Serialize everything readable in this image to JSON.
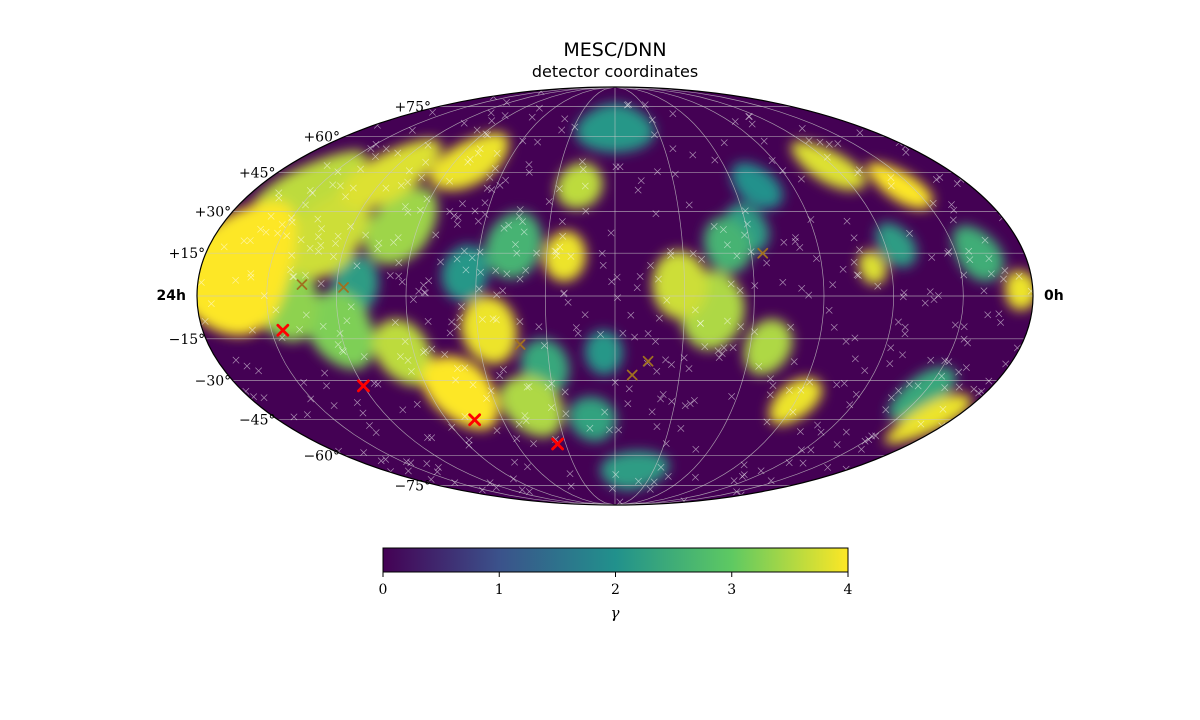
{
  "chart_data": {
    "type": "heatmap",
    "projection": "mollweide",
    "title": "MESC/DNN",
    "subtitle": "detector coordinates",
    "ra_labels": {
      "left": "24h",
      "right": "0h"
    },
    "dec_labels": [
      "+75°",
      "+60°",
      "+45°",
      "+30°",
      "+15°",
      "−15°",
      "−30°",
      "−45°",
      "−60°",
      "−75°"
    ],
    "colormap": "viridis",
    "colormap_stops": [
      "#440154",
      "#3b528b",
      "#21918c",
      "#5ec962",
      "#fde725"
    ],
    "colorbar": {
      "min": 0,
      "max": 4,
      "ticks": [
        "0",
        "1",
        "2",
        "3",
        "4"
      ],
      "label": "γ"
    },
    "grid": true,
    "blobs": [
      {
        "ra": 345,
        "dec": 10,
        "r": 24,
        "value": 4.0
      },
      {
        "ra": 335,
        "dec": 38,
        "r": 16,
        "value": 3.6
      },
      {
        "ra": 322,
        "dec": -2,
        "r": 14,
        "value": 3.3
      },
      {
        "ra": 310,
        "dec": 22,
        "r": 16,
        "value": 3.7
      },
      {
        "ra": 300,
        "dec": 45,
        "r": 14,
        "value": 3.8
      },
      {
        "ra": 300,
        "dec": -12,
        "r": 14,
        "value": 3.2
      },
      {
        "ra": 292,
        "dec": 4,
        "r": 10,
        "value": 2.2
      },
      {
        "ra": 278,
        "dec": 25,
        "r": 14,
        "value": 3.4
      },
      {
        "ra": 275,
        "dec": -20,
        "r": 12,
        "value": 3.6
      },
      {
        "ra": 262,
        "dec": 50,
        "r": 12,
        "value": 3.9
      },
      {
        "ra": 255,
        "dec": -35,
        "r": 14,
        "value": 4.0
      },
      {
        "ra": 245,
        "dec": 8,
        "r": 10,
        "value": 2.1
      },
      {
        "ra": 235,
        "dec": -12,
        "r": 12,
        "value": 3.9
      },
      {
        "ra": 225,
        "dec": 18,
        "r": 12,
        "value": 2.6
      },
      {
        "ra": 222,
        "dec": -40,
        "r": 12,
        "value": 3.5
      },
      {
        "ra": 212,
        "dec": -25,
        "r": 10,
        "value": 2.4
      },
      {
        "ra": 202,
        "dec": 14,
        "r": 9,
        "value": 3.9
      },
      {
        "ra": 198,
        "dec": 40,
        "r": 9,
        "value": 3.6
      },
      {
        "ra": 192,
        "dec": -45,
        "r": 9,
        "value": 2.3
      },
      {
        "ra": 180,
        "dec": 65,
        "r": 12,
        "value": 2.1
      },
      {
        "ra": 185,
        "dec": -20,
        "r": 8,
        "value": 2.1
      },
      {
        "ra": 165,
        "dec": -68,
        "r": 10,
        "value": 2.2
      },
      {
        "ra": 152,
        "dec": 4,
        "r": 12,
        "value": 3.7
      },
      {
        "ra": 138,
        "dec": -5,
        "r": 14,
        "value": 3.5
      },
      {
        "ra": 130,
        "dec": 18,
        "r": 10,
        "value": 2.6
      },
      {
        "ra": 120,
        "dec": 24,
        "r": 9,
        "value": 2.2
      },
      {
        "ra": 112,
        "dec": -18,
        "r": 10,
        "value": 3.5
      },
      {
        "ra": 108,
        "dec": 40,
        "r": 9,
        "value": 2.0
      },
      {
        "ra": 90,
        "dec": -38,
        "r": 9,
        "value": 3.9
      },
      {
        "ra": 68,
        "dec": 10,
        "r": 6,
        "value": 3.8
      },
      {
        "ra": 62,
        "dec": 48,
        "r": 10,
        "value": 3.8
      },
      {
        "ra": 55,
        "dec": 18,
        "r": 8,
        "value": 2.2
      },
      {
        "ra": 35,
        "dec": 40,
        "r": 9,
        "value": 4.0
      },
      {
        "ra": 30,
        "dec": -35,
        "r": 10,
        "value": 2.4
      },
      {
        "ra": 20,
        "dec": 15,
        "r": 10,
        "value": 2.5
      },
      {
        "ra": 12,
        "dec": -45,
        "r": 10,
        "value": 3.9
      },
      {
        "ra": 5,
        "dec": 2,
        "r": 7,
        "value": 3.9
      }
    ],
    "markers": [
      {
        "ra": 325,
        "dec": -12,
        "color": "#ff0000",
        "size": "large"
      },
      {
        "ra": 300,
        "dec": -32,
        "color": "#ff0000",
        "size": "large"
      },
      {
        "ra": 255,
        "dec": -45,
        "color": "#ff0000",
        "size": "large"
      },
      {
        "ra": 215,
        "dec": -55,
        "color": "#ff0000",
        "size": "large"
      },
      {
        "ra": 315,
        "dec": 4,
        "color": "#a07020",
        "size": "medium"
      },
      {
        "ra": 297,
        "dec": 3,
        "color": "#a07020",
        "size": "medium"
      },
      {
        "ra": 222,
        "dec": -17,
        "color": "#a07020",
        "size": "medium"
      },
      {
        "ra": 172,
        "dec": -28,
        "color": "#a07020",
        "size": "medium"
      },
      {
        "ra": 165,
        "dec": -23,
        "color": "#a07020",
        "size": "medium"
      },
      {
        "ra": 115,
        "dec": 15,
        "color": "#a07020",
        "size": "medium"
      }
    ]
  }
}
